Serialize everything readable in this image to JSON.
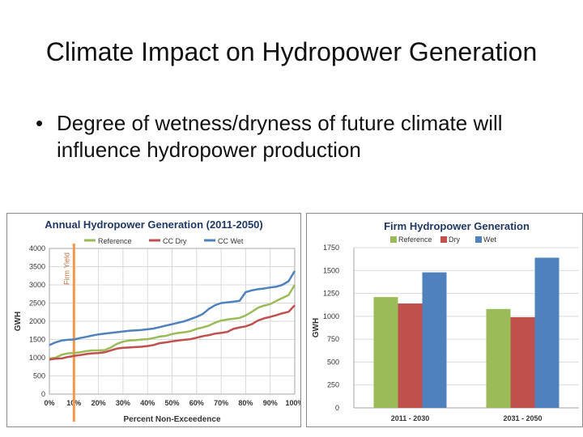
{
  "slide": {
    "title": "Climate Impact on Hydropower Generation",
    "bullet": "Degree of wetness/dryness of future climate will influence hydropower production"
  },
  "colors": {
    "reference": "#9bbb59",
    "dry": "#c0504d",
    "wet": "#4f81bd",
    "firm_yield": "#f79646",
    "title_text": "#1f3864"
  },
  "chart_data": [
    {
      "type": "line",
      "title": "Annual Hydropower Generation (2011-2050)",
      "xlabel": "Percent Non-Exceedence",
      "ylabel": "GWH",
      "xlim": [
        0,
        100
      ],
      "ylim": [
        0,
        4000
      ],
      "x_ticks": [
        "0%",
        "10%",
        "20%",
        "30%",
        "40%",
        "50%",
        "60%",
        "70%",
        "80%",
        "90%",
        "100%"
      ],
      "y_ticks": [
        "0",
        "500",
        "1000",
        "1500",
        "2000",
        "2500",
        "3000",
        "3500",
        "4000"
      ],
      "legend_position": "top",
      "grid": true,
      "x": [
        0,
        2.5,
        5,
        7.5,
        10,
        12.5,
        15,
        17.5,
        20,
        22.5,
        25,
        27.5,
        30,
        32.5,
        35,
        37.5,
        40,
        42.5,
        45,
        47.5,
        50,
        52.5,
        55,
        57.5,
        60,
        62.5,
        65,
        67.5,
        70,
        72.5,
        75,
        77.5,
        80,
        82.5,
        85,
        87.5,
        90,
        92.5,
        95,
        97.5,
        100
      ],
      "series": [
        {
          "name": "Reference",
          "color": "#9bbb59",
          "values": [
            980,
            1000,
            1080,
            1120,
            1130,
            1150,
            1180,
            1200,
            1200,
            1210,
            1280,
            1380,
            1440,
            1470,
            1480,
            1500,
            1510,
            1540,
            1580,
            1600,
            1650,
            1680,
            1700,
            1730,
            1790,
            1830,
            1880,
            1960,
            2020,
            2050,
            2070,
            2090,
            2160,
            2260,
            2370,
            2430,
            2470,
            2560,
            2640,
            2720,
            3000
          ]
        },
        {
          "name": "CC Dry",
          "color": "#c0504d",
          "values": [
            950,
            970,
            980,
            1020,
            1050,
            1070,
            1100,
            1120,
            1130,
            1150,
            1200,
            1250,
            1270,
            1280,
            1290,
            1300,
            1320,
            1350,
            1400,
            1420,
            1450,
            1470,
            1490,
            1510,
            1550,
            1590,
            1620,
            1660,
            1680,
            1710,
            1790,
            1830,
            1860,
            1920,
            2020,
            2080,
            2120,
            2170,
            2220,
            2260,
            2440
          ]
        },
        {
          "name": "CC Wet",
          "color": "#4f81bd",
          "values": [
            1350,
            1420,
            1470,
            1490,
            1500,
            1540,
            1570,
            1610,
            1640,
            1660,
            1680,
            1700,
            1720,
            1740,
            1750,
            1760,
            1780,
            1800,
            1840,
            1880,
            1920,
            1960,
            2000,
            2060,
            2120,
            2200,
            2340,
            2440,
            2500,
            2520,
            2540,
            2560,
            2800,
            2850,
            2880,
            2900,
            2930,
            2950,
            3000,
            3100,
            3380
          ]
        }
      ],
      "annotation": {
        "label": "Firm Yield",
        "x": 10
      }
    },
    {
      "type": "bar",
      "title": "Firm Hydropower Generation",
      "ylabel": "GWH",
      "ylim": [
        0,
        1750
      ],
      "y_ticks": [
        "0",
        "250",
        "500",
        "750",
        "1000",
        "1250",
        "1500",
        "1750"
      ],
      "categories": [
        "2011 - 2030",
        "2031 - 2050"
      ],
      "legend_position": "top",
      "grid": true,
      "series": [
        {
          "name": "Reference",
          "color": "#9bbb59",
          "values": [
            1210,
            1080
          ]
        },
        {
          "name": "Dry",
          "color": "#c0504d",
          "values": [
            1140,
            990
          ]
        },
        {
          "name": "Wet",
          "color": "#4f81bd",
          "values": [
            1480,
            1640
          ]
        }
      ]
    }
  ]
}
